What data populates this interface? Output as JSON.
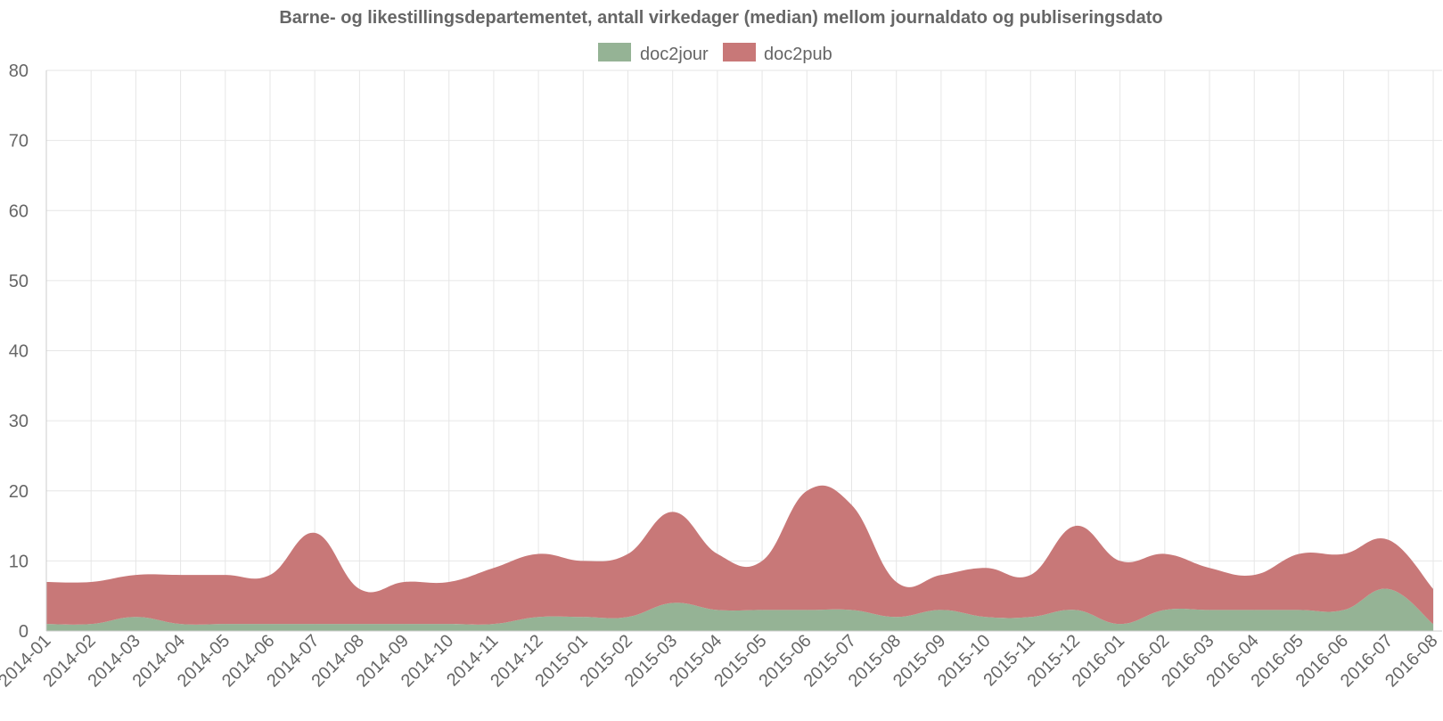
{
  "chart_data": {
    "type": "area",
    "stacked": true,
    "title": "Barne- og likestillingsdepartementet, antall virkedager (median) mellom journaldato og publiseringsdato",
    "legend_position": "top-center",
    "grid": true,
    "ylim": [
      0,
      80
    ],
    "yticks": [
      0,
      10,
      20,
      30,
      40,
      50,
      60,
      70,
      80
    ],
    "categories": [
      "2014-01",
      "2014-02",
      "2014-03",
      "2014-04",
      "2014-05",
      "2014-06",
      "2014-07",
      "2014-08",
      "2014-09",
      "2014-10",
      "2014-11",
      "2014-12",
      "2015-01",
      "2015-02",
      "2015-03",
      "2015-04",
      "2015-05",
      "2015-06",
      "2015-07",
      "2015-08",
      "2015-09",
      "2015-10",
      "2015-11",
      "2015-12",
      "2016-01",
      "2016-02",
      "2016-03",
      "2016-04",
      "2016-05",
      "2016-06",
      "2016-07",
      "2016-08"
    ],
    "series": [
      {
        "name": "doc2jour",
        "color": "#95b395",
        "values": [
          1,
          1,
          2,
          1,
          1,
          1,
          1,
          1,
          1,
          1,
          1,
          2,
          2,
          2,
          4,
          3,
          3,
          3,
          3,
          2,
          3,
          2,
          2,
          3,
          1,
          3,
          3,
          3,
          3,
          3,
          6,
          1
        ]
      },
      {
        "name": "doc2pub",
        "color": "#c87878",
        "values": [
          6,
          6,
          6,
          7,
          7,
          7,
          13,
          5,
          6,
          6,
          8,
          9,
          8,
          9,
          13,
          8,
          7,
          17,
          15,
          5,
          5,
          7,
          6,
          12,
          9,
          8,
          6,
          5,
          8,
          8,
          7,
          5
        ]
      }
    ]
  }
}
